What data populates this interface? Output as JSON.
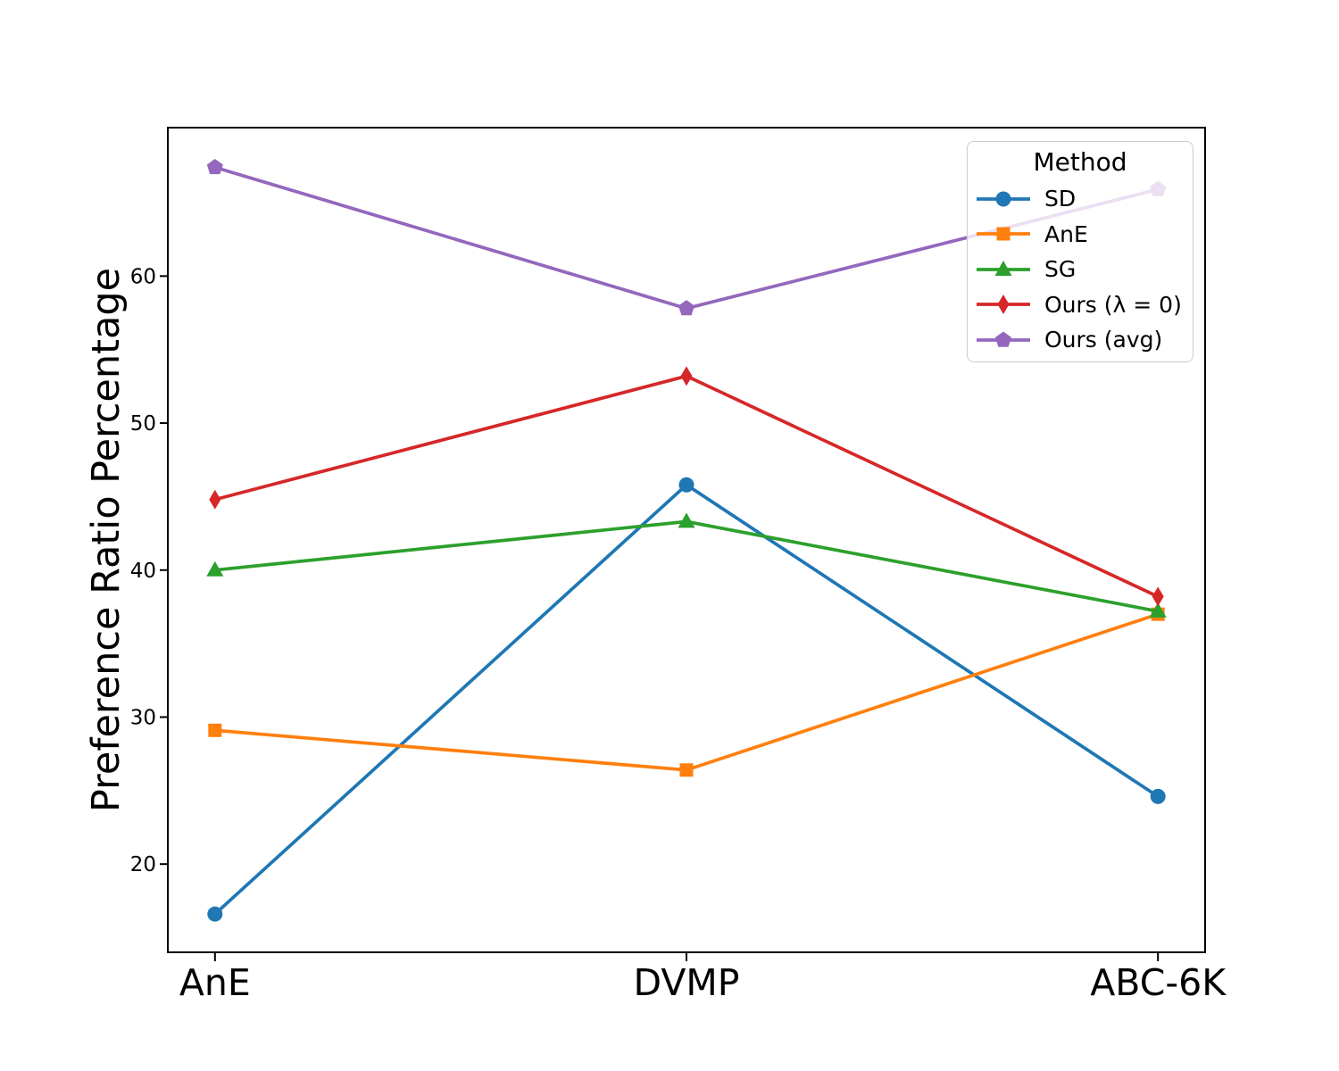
{
  "figure": {
    "background": "#ffffff"
  },
  "chart_data": {
    "type": "line",
    "title": "",
    "xlabel": "",
    "ylabel": "Preference Ratio Percentage",
    "categories": [
      "AnE",
      "DVMP",
      "ABC-6K"
    ],
    "yticks": [
      20,
      30,
      40,
      50,
      60
    ],
    "ylim": [
      14.0,
      70.1
    ],
    "grid": false,
    "legend": {
      "title": "Method",
      "position": "upper right"
    },
    "series": [
      {
        "name": "SD",
        "color": "#1f77b4",
        "marker": "circle",
        "values": [
          16.6,
          45.8,
          24.6
        ]
      },
      {
        "name": "AnE",
        "color": "#ff7f0e",
        "marker": "square",
        "values": [
          29.1,
          26.4,
          37.0
        ]
      },
      {
        "name": "SG",
        "color": "#2ca02c",
        "marker": "triangle-up",
        "values": [
          40.0,
          43.3,
          37.2
        ]
      },
      {
        "name": "Ours (λ = 0)",
        "color": "#d62728",
        "marker": "thin-diamond",
        "values": [
          44.8,
          53.2,
          38.2
        ]
      },
      {
        "name": "Ours (avg)",
        "color": "#9467bd",
        "marker": "pentagon",
        "values": [
          67.4,
          57.8,
          65.9
        ]
      }
    ]
  }
}
